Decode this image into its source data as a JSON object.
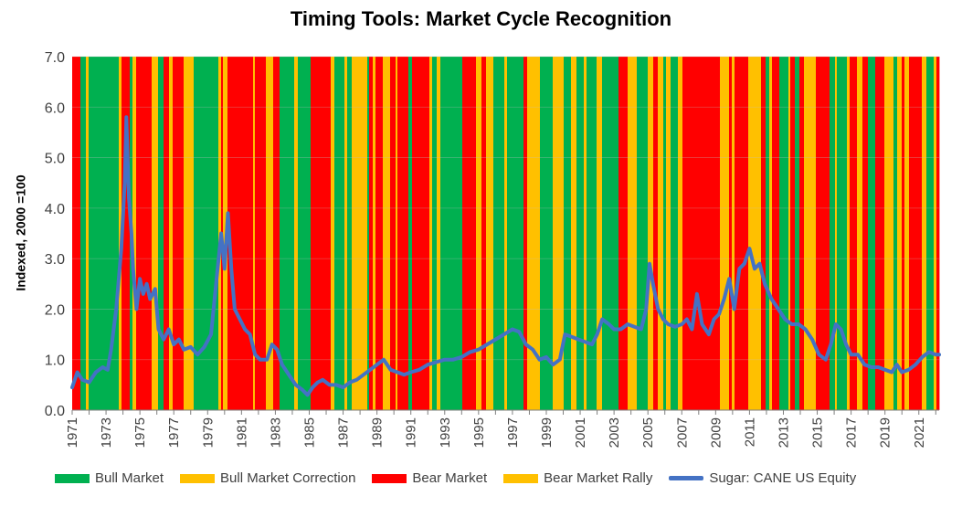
{
  "chart_data": {
    "type": "line",
    "title": "Timing Tools: Market Cycle Recognition",
    "ylabel": "Indexed, 2000 =100",
    "xlabel": "",
    "ylim": [
      0,
      7
    ],
    "xlim": [
      1971,
      2022.2
    ],
    "yticks": [
      "0.0",
      "1.0",
      "2.0",
      "3.0",
      "4.0",
      "5.0",
      "6.0",
      "7.0"
    ],
    "xticks": [
      "1971",
      "1973",
      "1975",
      "1977",
      "1979",
      "1981",
      "1983",
      "1985",
      "1987",
      "1989",
      "1991",
      "1993",
      "1995",
      "1997",
      "1999",
      "2001",
      "2003",
      "2005",
      "2007",
      "2009",
      "2011",
      "2013",
      "2015",
      "2017",
      "2019",
      "2021"
    ],
    "grid": true,
    "legend_position": "bottom",
    "regime_colors": {
      "bull": "#00b050",
      "bull_correction": "#ffc000",
      "bear": "#ff0000",
      "bear_rally": "#ffc000"
    },
    "legend": [
      {
        "key": "bull",
        "label": "Bull Market",
        "color": "#00b050",
        "kind": "box"
      },
      {
        "key": "bull_correction",
        "label": "Bull Market Correction",
        "color": "#ffc000",
        "kind": "box"
      },
      {
        "key": "bear",
        "label": "Bear Market",
        "color": "#ff0000",
        "kind": "box"
      },
      {
        "key": "bear_rally",
        "label": "Bear Market Rally",
        "color": "#ffc000",
        "kind": "box"
      },
      {
        "key": "series",
        "label": "Sugar: CANE US Equity",
        "color": "#4472c4",
        "kind": "line"
      }
    ],
    "series": [
      {
        "name": "Sugar: CANE US Equity",
        "color": "#4472c4",
        "points": [
          [
            1971.0,
            0.45
          ],
          [
            1971.3,
            0.75
          ],
          [
            1971.6,
            0.6
          ],
          [
            1972.0,
            0.55
          ],
          [
            1972.4,
            0.75
          ],
          [
            1972.8,
            0.85
          ],
          [
            1973.1,
            0.8
          ],
          [
            1973.3,
            1.2
          ],
          [
            1973.6,
            2.0
          ],
          [
            1973.9,
            3.2
          ],
          [
            1974.1,
            4.5
          ],
          [
            1974.2,
            5.8
          ],
          [
            1974.35,
            4.2
          ],
          [
            1974.5,
            3.5
          ],
          [
            1974.6,
            2.8
          ],
          [
            1974.8,
            2.0
          ],
          [
            1975.0,
            2.6
          ],
          [
            1975.2,
            2.3
          ],
          [
            1975.4,
            2.5
          ],
          [
            1975.6,
            2.2
          ],
          [
            1975.9,
            2.4
          ],
          [
            1976.1,
            1.6
          ],
          [
            1976.4,
            1.4
          ],
          [
            1976.7,
            1.6
          ],
          [
            1977.0,
            1.3
          ],
          [
            1977.3,
            1.4
          ],
          [
            1977.6,
            1.2
          ],
          [
            1978.0,
            1.25
          ],
          [
            1978.4,
            1.1
          ],
          [
            1978.8,
            1.25
          ],
          [
            1979.2,
            1.5
          ],
          [
            1979.5,
            2.5
          ],
          [
            1979.8,
            3.5
          ],
          [
            1980.0,
            2.8
          ],
          [
            1980.2,
            3.9
          ],
          [
            1980.4,
            2.8
          ],
          [
            1980.6,
            2.0
          ],
          [
            1980.9,
            1.8
          ],
          [
            1981.2,
            1.6
          ],
          [
            1981.5,
            1.5
          ],
          [
            1981.8,
            1.1
          ],
          [
            1982.1,
            1.0
          ],
          [
            1982.5,
            1.0
          ],
          [
            1982.8,
            1.3
          ],
          [
            1983.1,
            1.2
          ],
          [
            1983.4,
            0.9
          ],
          [
            1983.8,
            0.7
          ],
          [
            1984.2,
            0.5
          ],
          [
            1984.6,
            0.4
          ],
          [
            1984.9,
            0.3
          ],
          [
            1985.2,
            0.45
          ],
          [
            1985.5,
            0.55
          ],
          [
            1985.8,
            0.6
          ],
          [
            1986.2,
            0.5
          ],
          [
            1986.6,
            0.5
          ],
          [
            1987.0,
            0.45
          ],
          [
            1987.4,
            0.55
          ],
          [
            1987.8,
            0.6
          ],
          [
            1988.2,
            0.7
          ],
          [
            1988.6,
            0.8
          ],
          [
            1989.0,
            0.9
          ],
          [
            1989.4,
            1.0
          ],
          [
            1989.8,
            0.8
          ],
          [
            1990.2,
            0.75
          ],
          [
            1990.6,
            0.7
          ],
          [
            1991.0,
            0.75
          ],
          [
            1991.5,
            0.8
          ],
          [
            1992.0,
            0.9
          ],
          [
            1992.5,
            0.95
          ],
          [
            1993.0,
            1.0
          ],
          [
            1993.5,
            1.0
          ],
          [
            1994.0,
            1.05
          ],
          [
            1994.5,
            1.15
          ],
          [
            1995.0,
            1.2
          ],
          [
            1995.5,
            1.3
          ],
          [
            1996.0,
            1.4
          ],
          [
            1996.5,
            1.5
          ],
          [
            1997.0,
            1.6
          ],
          [
            1997.4,
            1.55
          ],
          [
            1997.8,
            1.3
          ],
          [
            1998.2,
            1.2
          ],
          [
            1998.6,
            1.0
          ],
          [
            1999.0,
            1.05
          ],
          [
            1999.4,
            0.9
          ],
          [
            1999.8,
            1.0
          ],
          [
            2000.1,
            1.5
          ],
          [
            2000.5,
            1.45
          ],
          [
            2000.9,
            1.4
          ],
          [
            2001.3,
            1.35
          ],
          [
            2001.7,
            1.3
          ],
          [
            2002.0,
            1.5
          ],
          [
            2002.3,
            1.8
          ],
          [
            2002.7,
            1.7
          ],
          [
            2003.0,
            1.6
          ],
          [
            2003.4,
            1.6
          ],
          [
            2003.8,
            1.7
          ],
          [
            2004.2,
            1.65
          ],
          [
            2004.6,
            1.6
          ],
          [
            2004.9,
            2.0
          ],
          [
            2005.1,
            2.9
          ],
          [
            2005.3,
            2.5
          ],
          [
            2005.6,
            2.0
          ],
          [
            2005.9,
            1.8
          ],
          [
            2006.2,
            1.7
          ],
          [
            2006.6,
            1.65
          ],
          [
            2007.0,
            1.7
          ],
          [
            2007.3,
            1.8
          ],
          [
            2007.6,
            1.6
          ],
          [
            2007.9,
            2.3
          ],
          [
            2008.2,
            1.7
          ],
          [
            2008.6,
            1.5
          ],
          [
            2008.9,
            1.8
          ],
          [
            2009.2,
            1.9
          ],
          [
            2009.5,
            2.2
          ],
          [
            2009.8,
            2.6
          ],
          [
            2010.1,
            2.0
          ],
          [
            2010.4,
            2.8
          ],
          [
            2010.7,
            2.9
          ],
          [
            2011.0,
            3.2
          ],
          [
            2011.3,
            2.8
          ],
          [
            2011.6,
            2.9
          ],
          [
            2011.9,
            2.5
          ],
          [
            2012.3,
            2.2
          ],
          [
            2012.7,
            2.0
          ],
          [
            2013.1,
            1.8
          ],
          [
            2013.5,
            1.7
          ],
          [
            2013.9,
            1.7
          ],
          [
            2014.3,
            1.6
          ],
          [
            2014.7,
            1.4
          ],
          [
            2015.1,
            1.1
          ],
          [
            2015.5,
            1.0
          ],
          [
            2015.8,
            1.3
          ],
          [
            2016.1,
            1.7
          ],
          [
            2016.4,
            1.6
          ],
          [
            2016.7,
            1.3
          ],
          [
            2017.0,
            1.1
          ],
          [
            2017.4,
            1.1
          ],
          [
            2017.8,
            0.9
          ],
          [
            2018.2,
            0.85
          ],
          [
            2018.6,
            0.85
          ],
          [
            2019.0,
            0.8
          ],
          [
            2019.4,
            0.75
          ],
          [
            2019.7,
            0.9
          ],
          [
            2020.0,
            0.75
          ],
          [
            2020.4,
            0.8
          ],
          [
            2020.8,
            0.9
          ],
          [
            2021.2,
            1.05
          ],
          [
            2021.6,
            1.15
          ],
          [
            2022.0,
            1.1
          ],
          [
            2022.2,
            1.1
          ]
        ]
      }
    ]
  }
}
